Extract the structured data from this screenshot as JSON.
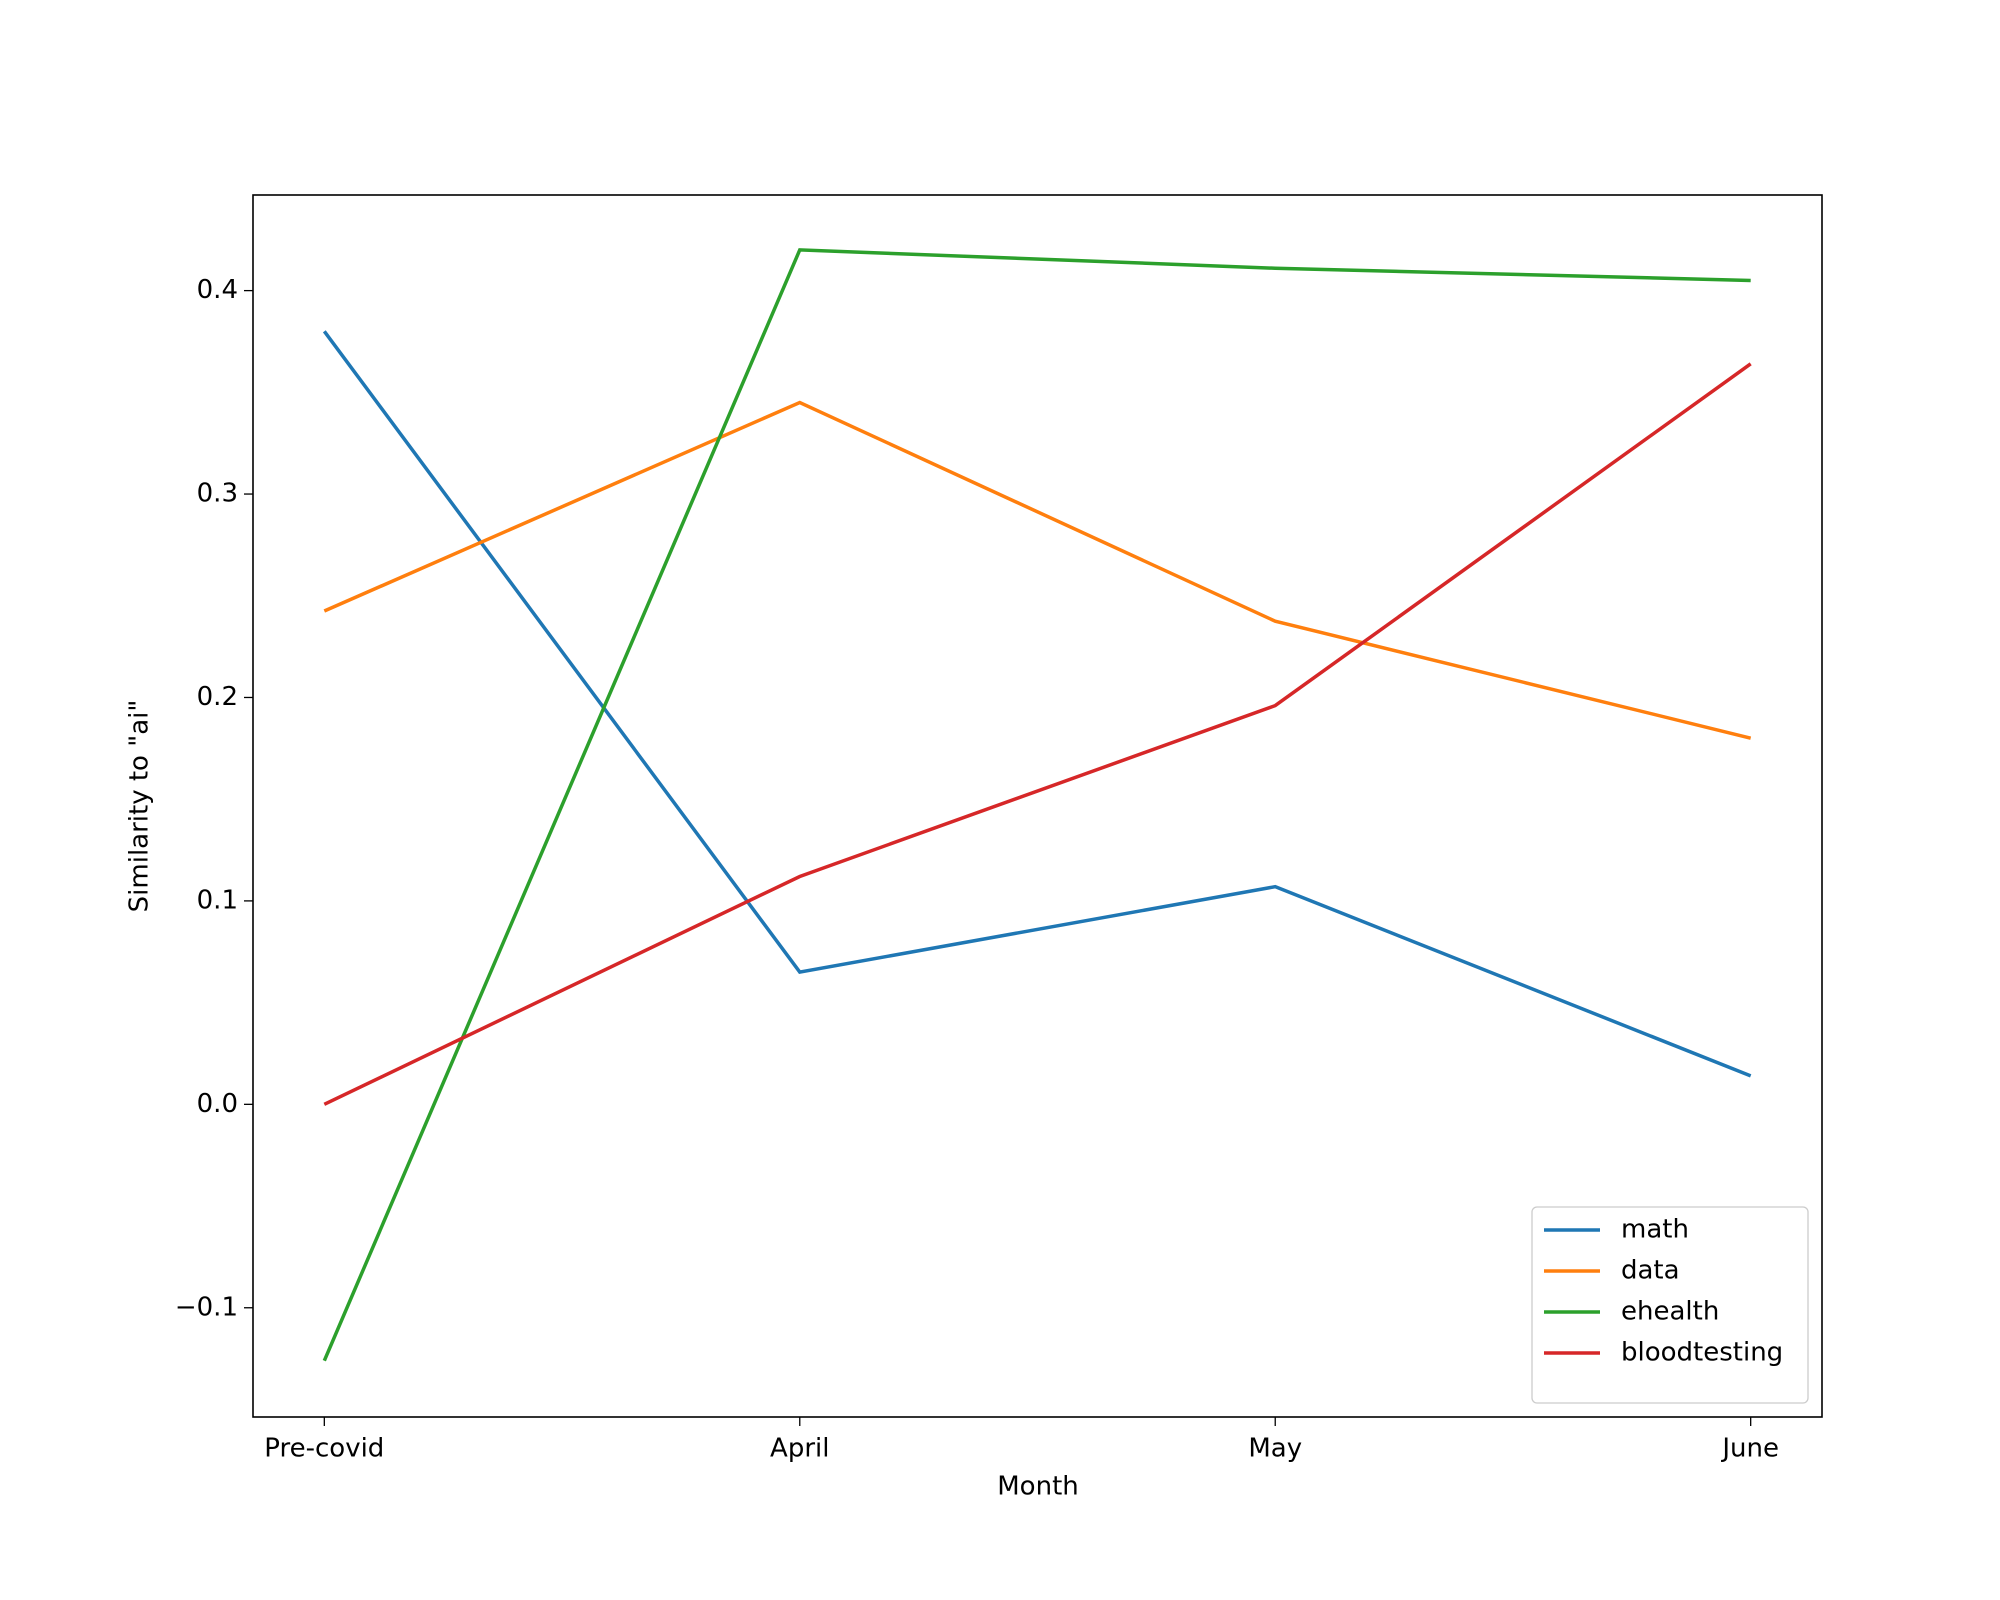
{
  "chart_data": {
    "type": "line",
    "xlabel": "Month",
    "ylabel": "Similarity to \"ai\"",
    "categories": [
      "Pre-covid",
      "April",
      "May",
      "June"
    ],
    "series": [
      {
        "name": "math",
        "color": "#1f77b4",
        "values": [
          0.38,
          0.065,
          0.107,
          0.014
        ]
      },
      {
        "name": "data",
        "color": "#ff7f0e",
        "values": [
          0.2425,
          0.345,
          0.2375,
          0.18
        ]
      },
      {
        "name": "ehealth",
        "color": "#2ca02c",
        "values": [
          -0.126,
          0.42,
          0.411,
          0.405
        ]
      },
      {
        "name": "bloodtesting",
        "color": "#d62728",
        "values": [
          0,
          0.112,
          0.196,
          0.364
        ]
      }
    ],
    "ylim": [
      -0.1537,
      0.447
    ],
    "yticks": [
      {
        "value": -0.1,
        "label": "−0.1"
      },
      {
        "value": 0,
        "label": "0.0"
      },
      0.1,
      0.2,
      0.3,
      0.4
    ],
    "legend": "lower right"
  }
}
